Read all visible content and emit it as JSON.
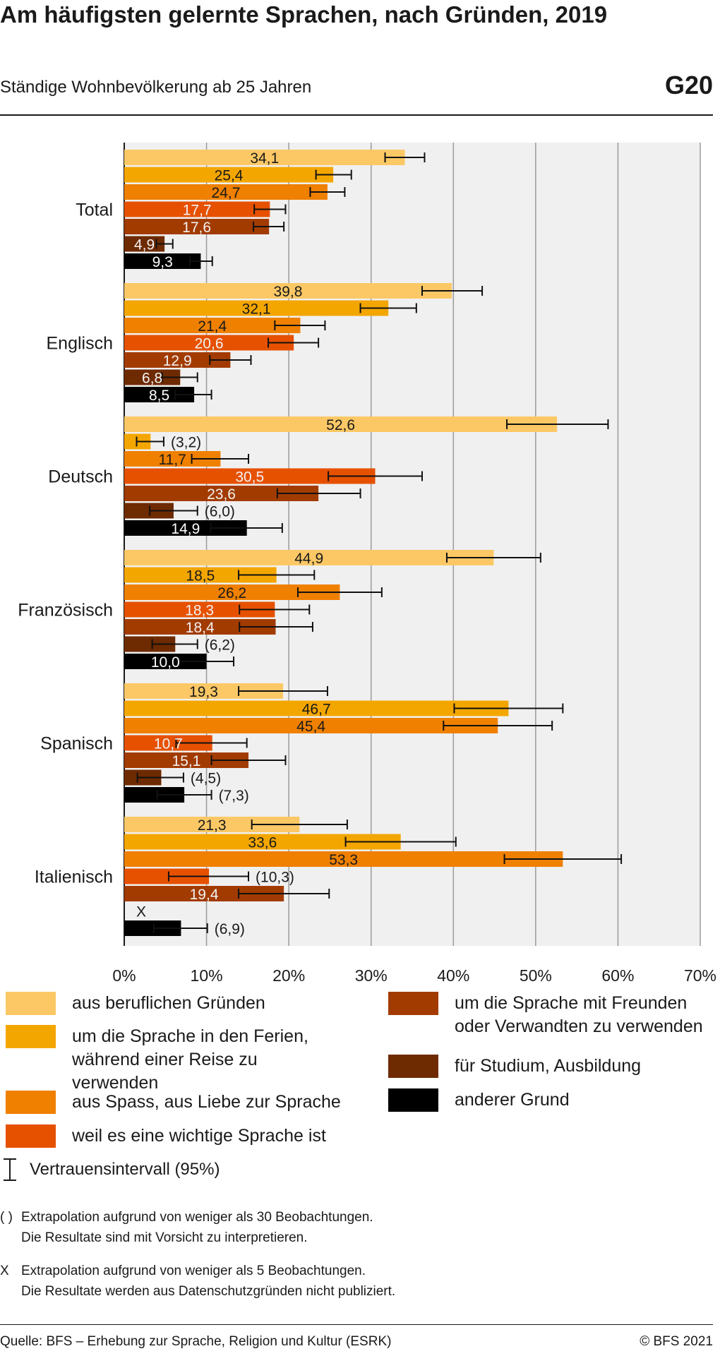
{
  "title": "Am häufigsten gelernte Sprachen, nach Gründen, 2019",
  "subtitle": "Ständige Wohnbevölkerung ab 25 Jahren",
  "graphic_code": "G20",
  "chart_data": {
    "type": "bar",
    "orientation": "horizontal",
    "categories": [
      "Total",
      "Englisch",
      "Deutsch",
      "Französisch",
      "Spanisch",
      "Italienisch"
    ],
    "xlim": [
      0,
      70
    ],
    "x_ticks": [
      "0%",
      "10%",
      "20%",
      "30%",
      "40%",
      "50%",
      "60%",
      "70%"
    ],
    "grid": true,
    "series": [
      {
        "name": "aus beruflichen Gründen",
        "color": "#fcc865",
        "values": [
          34.1,
          39.8,
          52.6,
          44.9,
          19.3,
          21.3
        ],
        "labels": [
          "34,1",
          "39,8",
          "52,6",
          "44,9",
          "19,3",
          "21,3"
        ],
        "ci": [
          [
            31.7,
            36.5
          ],
          [
            36.2,
            43.5
          ],
          [
            46.5,
            58.8
          ],
          [
            39.2,
            50.6
          ],
          [
            13.9,
            24.7
          ],
          [
            15.5,
            27.1
          ]
        ]
      },
      {
        "name": "um die Sprache in den Ferien, während einer Reise zu verwenden",
        "color": "#f4a600",
        "values": [
          25.4,
          32.1,
          3.2,
          18.5,
          46.7,
          33.6
        ],
        "labels": [
          "25,4",
          "32,1",
          "(3,2)",
          "18,5",
          "46,7",
          "33,6"
        ],
        "ci": [
          [
            23.3,
            27.6
          ],
          [
            28.7,
            35.5
          ],
          [
            1.5,
            4.8
          ],
          [
            13.9,
            23.1
          ],
          [
            40.1,
            53.3
          ],
          [
            26.9,
            40.3
          ]
        ]
      },
      {
        "name": "aus Spass, aus Liebe zur Sprache",
        "color": "#ef8000",
        "values": [
          24.7,
          21.4,
          11.7,
          26.2,
          45.4,
          53.3
        ],
        "labels": [
          "24,7",
          "21,4",
          "11,7",
          "26,2",
          "45,4",
          "53,3"
        ],
        "ci": [
          [
            22.6,
            26.8
          ],
          [
            18.3,
            24.4
          ],
          [
            8.2,
            15.1
          ],
          [
            21.1,
            31.3
          ],
          [
            38.8,
            52.0
          ],
          [
            46.2,
            60.4
          ]
        ]
      },
      {
        "name": "weil es eine wichtige Sprache ist",
        "color": "#e65100",
        "values": [
          17.7,
          20.6,
          30.5,
          18.3,
          10.7,
          10.3
        ],
        "labels": [
          "17,7",
          "20,6",
          "30,5",
          "18,3",
          "10,7",
          "(10,3)"
        ],
        "ci": [
          [
            15.8,
            19.6
          ],
          [
            17.5,
            23.6
          ],
          [
            24.8,
            36.2
          ],
          [
            14.0,
            22.5
          ],
          [
            6.3,
            14.9
          ],
          [
            5.4,
            15.1
          ]
        ]
      },
      {
        "name": "um die Sprache mit Freunden oder Verwandten zu verwenden",
        "color": "#a23b00",
        "values": [
          17.6,
          12.9,
          23.6,
          18.4,
          15.1,
          19.4
        ],
        "labels": [
          "17,6",
          "12,9",
          "23,6",
          "18,4",
          "15,1",
          "19,4"
        ],
        "ci": [
          [
            15.7,
            19.4
          ],
          [
            10.4,
            15.4
          ],
          [
            18.6,
            28.7
          ],
          [
            14.0,
            22.9
          ],
          [
            10.6,
            19.6
          ],
          [
            13.9,
            24.9
          ]
        ]
      },
      {
        "name": "für Studium, Ausbildung",
        "color": "#6e2a00",
        "values": [
          4.9,
          6.8,
          6.0,
          6.2,
          4.5,
          null
        ],
        "labels": [
          "4,9",
          "6,8",
          "(6,0)",
          "(6,2)",
          "(4,5)",
          "X"
        ],
        "ci": [
          [
            3.9,
            5.9
          ],
          [
            4.6,
            8.9
          ],
          [
            3.1,
            8.9
          ],
          [
            3.4,
            8.9
          ],
          [
            1.6,
            7.2
          ],
          null
        ]
      },
      {
        "name": "anderer Grund",
        "color": "#000000",
        "values": [
          9.3,
          8.5,
          14.9,
          10.0,
          7.3,
          6.9
        ],
        "labels": [
          "9,3",
          "8,5",
          "14,9",
          "10,0",
          "(7,3)",
          "(6,9)"
        ],
        "ci": [
          [
            8.0,
            10.7
          ],
          [
            6.2,
            10.6
          ],
          [
            10.5,
            19.2
          ],
          [
            6.7,
            13.3
          ],
          [
            4.0,
            10.6
          ],
          [
            3.6,
            10.1
          ]
        ]
      }
    ]
  },
  "legend_note_ci": "Vertrauensintervall (95%)",
  "notes": [
    {
      "symbol": "( )",
      "line1": "Extrapolation aufgrund von weniger als 30 Beobachtungen.",
      "line2": "Die Resultate sind mit Vorsicht zu interpretieren."
    },
    {
      "symbol": "X",
      "line1": "Extrapolation aufgrund von weniger als 5 Beobachtungen.",
      "line2": "Die Resultate werden aus Datenschutzgründen nicht publiziert."
    }
  ],
  "source": "Quelle: BFS – Erhebung zur Sprache, Religion und Kultur (ESRK)",
  "copyright": "© BFS 2021"
}
